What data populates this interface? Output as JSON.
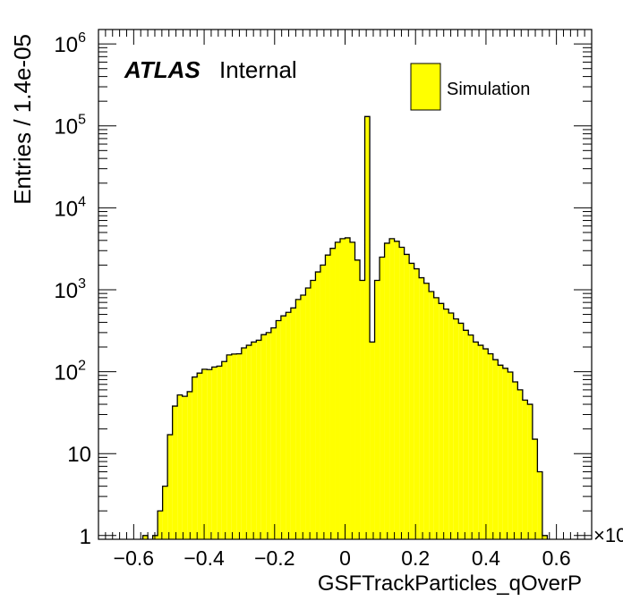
{
  "chart_data": {
    "type": "histogram",
    "xlabel": "GSFTrackParticles_qOverP",
    "ylabel": "Entries / 1.4e-05",
    "x_multiplier": "×10",
    "xlim": [
      -0.7,
      0.7
    ],
    "ylim": [
      0.9,
      1500000
    ],
    "yscale": "log",
    "grid": false,
    "bin_width": 0.014,
    "legend": {
      "position": "top-right",
      "entries": [
        "Simulation"
      ]
    },
    "atlas_label": {
      "bold": "ATLAS",
      "text": "Internal"
    },
    "xticks": [
      -0.6,
      -0.4,
      -0.2,
      0,
      0.2,
      0.4,
      0.6
    ],
    "xtick_labels": [
      "−0.6",
      "−0.4",
      "−0.2",
      "0",
      "0.2",
      "0.4",
      "0.6"
    ],
    "ytick_labels": [
      {
        "value": 1,
        "base": "1",
        "exp": ""
      },
      {
        "value": 10,
        "base": "10",
        "exp": ""
      },
      {
        "value": 100,
        "base": "10",
        "exp": "2"
      },
      {
        "value": 1000,
        "base": "10",
        "exp": "3"
      },
      {
        "value": 10000,
        "base": "10",
        "exp": "4"
      },
      {
        "value": 100000,
        "base": "10",
        "exp": "5"
      },
      {
        "value": 1000000,
        "base": "10",
        "exp": "6"
      }
    ],
    "colors": {
      "fill": "#ffff00",
      "line": "#000000"
    },
    "series": [
      {
        "name": "Simulation",
        "bins": [
          [
            -0.574,
            1
          ],
          [
            -0.546,
            1
          ],
          [
            -0.532,
            2
          ],
          [
            -0.518,
            4
          ],
          [
            -0.504,
            17
          ],
          [
            -0.49,
            38
          ],
          [
            -0.476,
            52
          ],
          [
            -0.462,
            50
          ],
          [
            -0.448,
            57
          ],
          [
            -0.434,
            86
          ],
          [
            -0.42,
            96
          ],
          [
            -0.406,
            107
          ],
          [
            -0.392,
            106
          ],
          [
            -0.378,
            114
          ],
          [
            -0.364,
            117
          ],
          [
            -0.35,
            133
          ],
          [
            -0.336,
            160
          ],
          [
            -0.322,
            164
          ],
          [
            -0.308,
            165
          ],
          [
            -0.294,
            195
          ],
          [
            -0.28,
            210
          ],
          [
            -0.266,
            230
          ],
          [
            -0.252,
            242
          ],
          [
            -0.238,
            283
          ],
          [
            -0.224,
            300
          ],
          [
            -0.21,
            342
          ],
          [
            -0.196,
            420
          ],
          [
            -0.182,
            480
          ],
          [
            -0.168,
            530
          ],
          [
            -0.154,
            600
          ],
          [
            -0.14,
            760
          ],
          [
            -0.126,
            860
          ],
          [
            -0.112,
            1050
          ],
          [
            -0.098,
            1300
          ],
          [
            -0.084,
            1650
          ],
          [
            -0.07,
            2000
          ],
          [
            -0.056,
            2650
          ],
          [
            -0.042,
            3200
          ],
          [
            -0.028,
            3800
          ],
          [
            -0.014,
            4200
          ],
          [
            0.0,
            4300
          ],
          [
            0.014,
            3800
          ],
          [
            0.028,
            2300
          ],
          [
            0.042,
            1300
          ],
          [
            0.056,
            130000
          ],
          [
            0.07,
            230
          ],
          [
            0.084,
            1300
          ],
          [
            0.098,
            2500
          ],
          [
            0.112,
            3700
          ],
          [
            0.126,
            4200
          ],
          [
            0.14,
            3900
          ],
          [
            0.154,
            3300
          ],
          [
            0.168,
            2700
          ],
          [
            0.182,
            2100
          ],
          [
            0.196,
            1800
          ],
          [
            0.21,
            1400
          ],
          [
            0.224,
            1200
          ],
          [
            0.238,
            950
          ],
          [
            0.252,
            800
          ],
          [
            0.266,
            680
          ],
          [
            0.28,
            580
          ],
          [
            0.294,
            520
          ],
          [
            0.308,
            440
          ],
          [
            0.322,
            390
          ],
          [
            0.336,
            320
          ],
          [
            0.35,
            280
          ],
          [
            0.364,
            230
          ],
          [
            0.378,
            210
          ],
          [
            0.392,
            190
          ],
          [
            0.406,
            165
          ],
          [
            0.42,
            140
          ],
          [
            0.434,
            120
          ],
          [
            0.448,
            110
          ],
          [
            0.462,
            99
          ],
          [
            0.476,
            75
          ],
          [
            0.49,
            60
          ],
          [
            0.504,
            45
          ],
          [
            0.518,
            40
          ],
          [
            0.532,
            15
          ],
          [
            0.546,
            6
          ],
          [
            0.56,
            1
          ]
        ]
      }
    ]
  }
}
